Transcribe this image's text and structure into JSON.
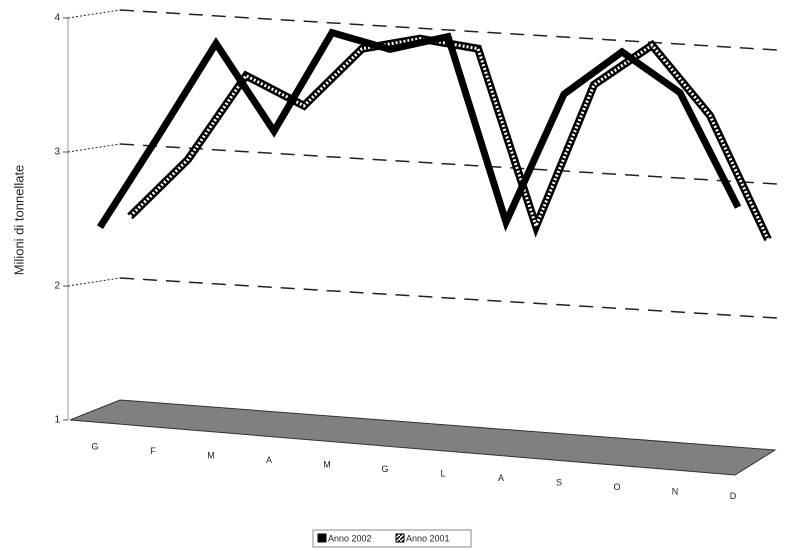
{
  "chart_data": {
    "type": "line",
    "y_label": "Milioni di tonnellate",
    "categories": [
      "G",
      "F",
      "M",
      "A",
      "M",
      "G",
      "L",
      "A",
      "S",
      "O",
      "N",
      "D"
    ],
    "series": [
      {
        "name": "Anno 2002",
        "color": "#000000",
        "values": [
          2.45,
          3.15,
          3.87,
          3.24,
          4.0,
          3.9,
          4.02,
          2.66,
          3.64,
          3.98,
          3.7,
          2.87
        ]
      },
      {
        "name": "Anno 2001",
        "color": "#000000",
        "values": [
          2.5,
          2.95,
          3.6,
          3.4,
          3.85,
          3.95,
          3.9,
          2.6,
          3.68,
          4.0,
          3.5,
          2.6
        ]
      }
    ],
    "ylim": [
      1,
      4
    ],
    "yticks": [
      1,
      2,
      3,
      4
    ],
    "grid": true
  }
}
